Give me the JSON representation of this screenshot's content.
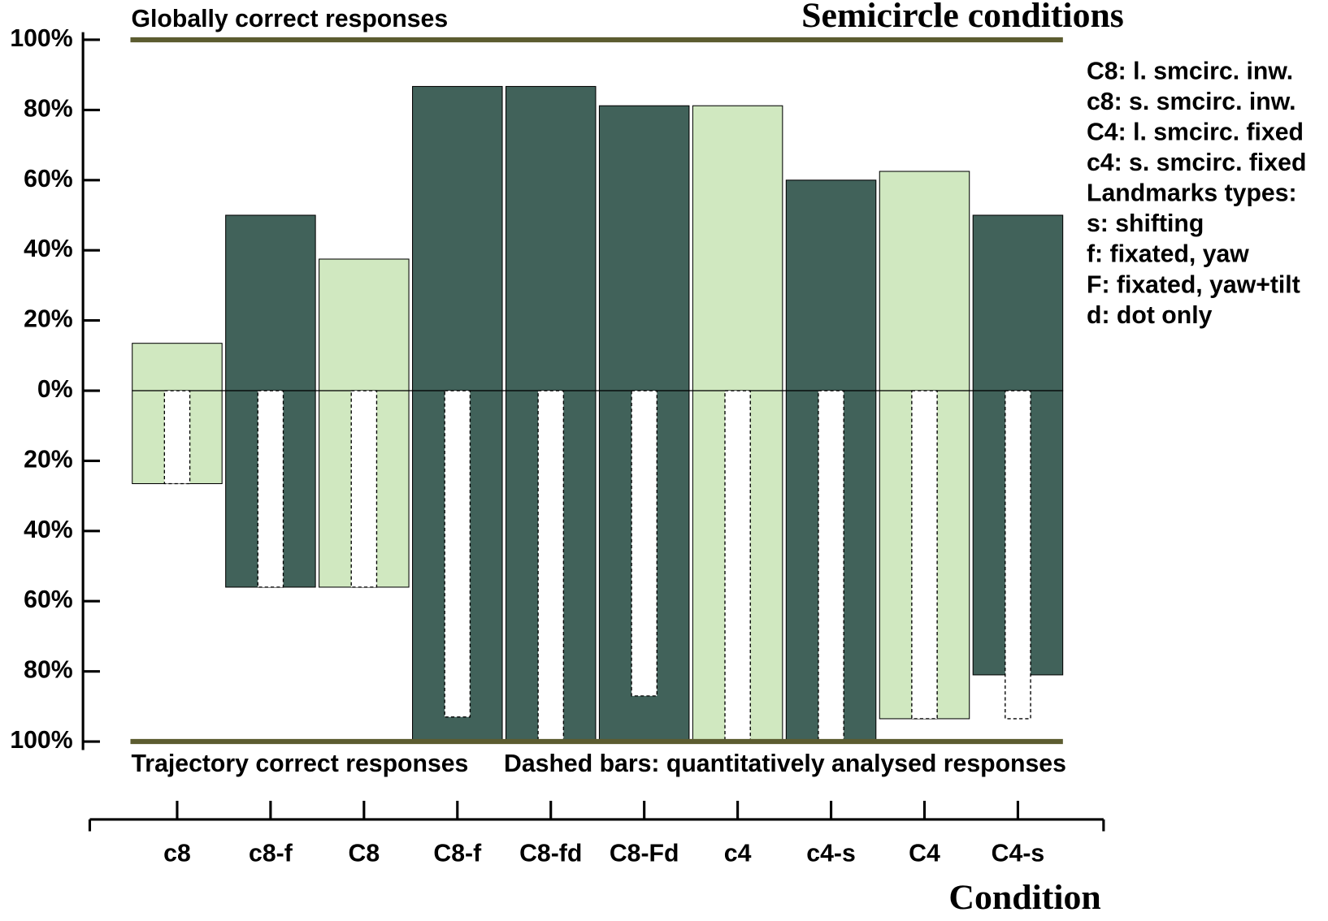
{
  "chart_data": {
    "type": "bar",
    "title": "Semicircle conditions",
    "x_label": "Condition",
    "categories": [
      "c8",
      "c8-f",
      "C8",
      "C8-f",
      "C8-fd",
      "C8-Fd",
      "c4",
      "c4-s",
      "C4",
      "C4-s"
    ],
    "bar_colors": [
      "#d0e8c0",
      "#41625a",
      "#d0e8c0",
      "#41625a",
      "#41625a",
      "#41625a",
      "#d0e8c0",
      "#41625a",
      "#d0e8c0",
      "#41625a"
    ],
    "series": [
      {
        "name": "Globally correct responses",
        "values": [
          13.5,
          50,
          37.5,
          86.7,
          86.7,
          81.2,
          81.2,
          60,
          62.5,
          50
        ]
      },
      {
        "name": "Trajectory correct responses",
        "values": [
          -26.5,
          -56,
          -56,
          -100,
          -100,
          -100,
          -100,
          -100,
          -93.5,
          -81
        ]
      },
      {
        "name": "Dashed bars: quantitatively analysed responses",
        "values": [
          -26.5,
          -56,
          -56,
          -93,
          -100,
          -87,
          -100,
          -100,
          -93.5,
          -93.5
        ]
      }
    ],
    "ylim": [
      -100,
      100
    ],
    "yticks": [
      {
        "value": 100,
        "label": "100%"
      },
      {
        "value": 80,
        "label": "80%"
      },
      {
        "value": 60,
        "label": "60%"
      },
      {
        "value": 40,
        "label": "40%"
      },
      {
        "value": 20,
        "label": "20%"
      },
      {
        "value": 0,
        "label": "0%"
      },
      {
        "value": -20,
        "label": "20%"
      },
      {
        "value": -40,
        "label": "40%"
      },
      {
        "value": -60,
        "label": "60%"
      },
      {
        "value": -80,
        "label": "80%"
      },
      {
        "value": -100,
        "label": "100%"
      }
    ],
    "limit_line_color": "#5c5c30",
    "notes": [
      "C8: l. smcirc. inw.",
      "c8: s. smcirc. inw.",
      "C4: l. smcirc. fixed",
      "c4: s. smcirc. fixed",
      "Landmarks types:",
      "s: shifting",
      "f: fixated, yaw",
      "F: fixated, yaw+tilt",
      "d: dot only"
    ]
  }
}
